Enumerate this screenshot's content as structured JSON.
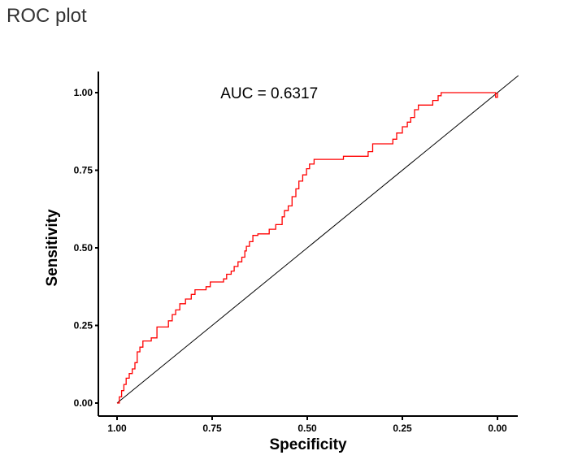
{
  "page": {
    "title": "ROC plot"
  },
  "chart_data": {
    "type": "line",
    "title": "",
    "xlabel": "Specificity",
    "ylabel": "Sensitivity",
    "x_reversed": true,
    "xlim": [
      1.0,
      0.0
    ],
    "ylim": [
      0.0,
      1.0
    ],
    "x_ticks": [
      1.0,
      0.75,
      0.5,
      0.25,
      0.0
    ],
    "x_tick_labels": [
      "1.00",
      "0.75",
      "0.50",
      "0.25",
      "0.00"
    ],
    "y_ticks": [
      0.0,
      0.25,
      0.5,
      0.75,
      1.0
    ],
    "y_tick_labels": [
      "0.00",
      "0.25",
      "0.50",
      "0.75",
      "1.00"
    ],
    "grid": false,
    "annotations": [
      {
        "text": "AUC = 0.6317",
        "specificity": 0.6,
        "sensitivity": 1.0
      }
    ],
    "series": [
      {
        "color": "#ff0000",
        "points": [
          [
            1.0,
            0.0
          ],
          [
            0.994,
            0.0
          ],
          [
            0.994,
            0.02
          ],
          [
            0.988,
            0.02
          ],
          [
            0.988,
            0.04
          ],
          [
            0.982,
            0.04
          ],
          [
            0.982,
            0.06
          ],
          [
            0.976,
            0.06
          ],
          [
            0.976,
            0.08
          ],
          [
            0.968,
            0.08
          ],
          [
            0.968,
            0.095
          ],
          [
            0.96,
            0.095
          ],
          [
            0.96,
            0.11
          ],
          [
            0.953,
            0.11
          ],
          [
            0.953,
            0.13
          ],
          [
            0.947,
            0.13
          ],
          [
            0.947,
            0.165
          ],
          [
            0.94,
            0.165
          ],
          [
            0.94,
            0.18
          ],
          [
            0.932,
            0.18
          ],
          [
            0.932,
            0.2
          ],
          [
            0.91,
            0.2
          ],
          [
            0.91,
            0.21
          ],
          [
            0.895,
            0.21
          ],
          [
            0.895,
            0.245
          ],
          [
            0.865,
            0.245
          ],
          [
            0.865,
            0.265
          ],
          [
            0.855,
            0.265
          ],
          [
            0.855,
            0.285
          ],
          [
            0.846,
            0.285
          ],
          [
            0.846,
            0.3
          ],
          [
            0.835,
            0.3
          ],
          [
            0.835,
            0.32
          ],
          [
            0.82,
            0.32
          ],
          [
            0.82,
            0.335
          ],
          [
            0.805,
            0.335
          ],
          [
            0.805,
            0.35
          ],
          [
            0.795,
            0.35
          ],
          [
            0.795,
            0.365
          ],
          [
            0.766,
            0.365
          ],
          [
            0.766,
            0.375
          ],
          [
            0.755,
            0.375
          ],
          [
            0.755,
            0.39
          ],
          [
            0.72,
            0.39
          ],
          [
            0.72,
            0.4
          ],
          [
            0.712,
            0.4
          ],
          [
            0.712,
            0.415
          ],
          [
            0.7,
            0.415
          ],
          [
            0.7,
            0.425
          ],
          [
            0.692,
            0.425
          ],
          [
            0.692,
            0.44
          ],
          [
            0.682,
            0.44
          ],
          [
            0.682,
            0.455
          ],
          [
            0.672,
            0.455
          ],
          [
            0.672,
            0.47
          ],
          [
            0.664,
            0.47
          ],
          [
            0.664,
            0.49
          ],
          [
            0.66,
            0.49
          ],
          [
            0.66,
            0.505
          ],
          [
            0.652,
            0.505
          ],
          [
            0.652,
            0.52
          ],
          [
            0.643,
            0.52
          ],
          [
            0.643,
            0.54
          ],
          [
            0.63,
            0.54
          ],
          [
            0.63,
            0.545
          ],
          [
            0.6,
            0.545
          ],
          [
            0.6,
            0.56
          ],
          [
            0.583,
            0.56
          ],
          [
            0.583,
            0.575
          ],
          [
            0.566,
            0.575
          ],
          [
            0.566,
            0.6
          ],
          [
            0.56,
            0.6
          ],
          [
            0.56,
            0.62
          ],
          [
            0.55,
            0.62
          ],
          [
            0.55,
            0.635
          ],
          [
            0.54,
            0.635
          ],
          [
            0.54,
            0.665
          ],
          [
            0.53,
            0.665
          ],
          [
            0.53,
            0.69
          ],
          [
            0.522,
            0.69
          ],
          [
            0.522,
            0.715
          ],
          [
            0.512,
            0.715
          ],
          [
            0.512,
            0.735
          ],
          [
            0.502,
            0.735
          ],
          [
            0.502,
            0.755
          ],
          [
            0.494,
            0.755
          ],
          [
            0.494,
            0.77
          ],
          [
            0.482,
            0.77
          ],
          [
            0.482,
            0.785
          ],
          [
            0.405,
            0.785
          ],
          [
            0.405,
            0.795
          ],
          [
            0.34,
            0.795
          ],
          [
            0.34,
            0.81
          ],
          [
            0.328,
            0.81
          ],
          [
            0.328,
            0.835
          ],
          [
            0.275,
            0.835
          ],
          [
            0.275,
            0.85
          ],
          [
            0.265,
            0.85
          ],
          [
            0.265,
            0.87
          ],
          [
            0.25,
            0.87
          ],
          [
            0.25,
            0.89
          ],
          [
            0.237,
            0.89
          ],
          [
            0.237,
            0.905
          ],
          [
            0.228,
            0.905
          ],
          [
            0.228,
            0.92
          ],
          [
            0.218,
            0.92
          ],
          [
            0.218,
            0.945
          ],
          [
            0.208,
            0.945
          ],
          [
            0.208,
            0.96
          ],
          [
            0.17,
            0.96
          ],
          [
            0.17,
            0.975
          ],
          [
            0.156,
            0.975
          ],
          [
            0.156,
            0.99
          ],
          [
            0.148,
            0.99
          ],
          [
            0.148,
            1.0
          ],
          [
            0.005,
            1.0
          ],
          [
            0.005,
            0.985
          ],
          [
            0.0,
            0.985
          ],
          [
            0.0,
            1.0
          ]
        ]
      }
    ],
    "reference_line": {
      "color": "#000000",
      "from": [
        1.0,
        0.0
      ],
      "to": [
        0.0,
        1.0
      ]
    }
  }
}
